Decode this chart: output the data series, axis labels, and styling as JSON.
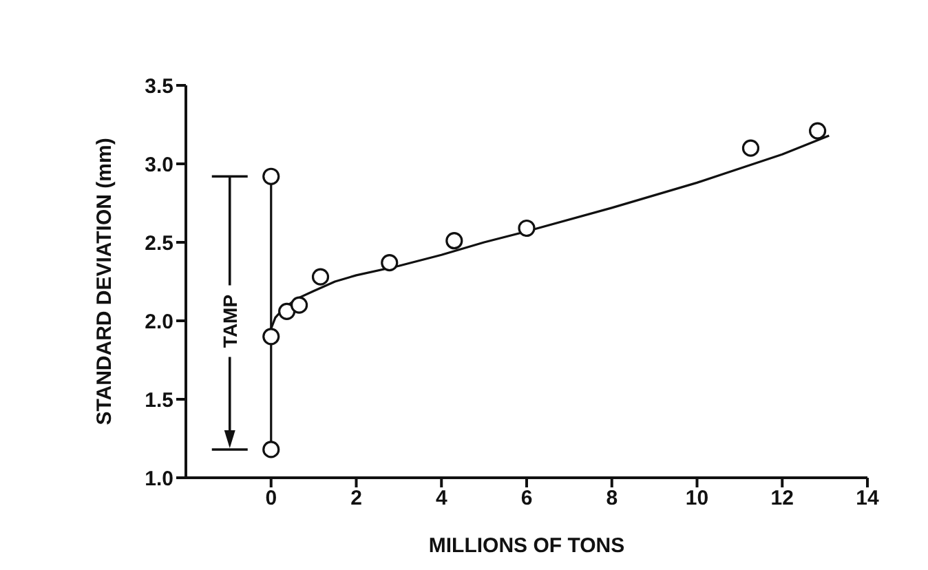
{
  "chart_data": {
    "type": "line",
    "xlabel": "MILLIONS OF TONS",
    "ylabel": "STANDARD DEVIATION (mm)",
    "xlim": [
      -2,
      14
    ],
    "xticks": [
      0,
      2,
      4,
      6,
      8,
      10,
      12,
      14
    ],
    "ylim": [
      1.0,
      3.5
    ],
    "yticks": [
      {
        "value": 1.0,
        "label": "1.0"
      },
      {
        "value": 1.5,
        "label": "1.5"
      },
      {
        "value": 2.0,
        "label": "2.0"
      },
      {
        "value": 2.5,
        "label": "2.5"
      },
      {
        "value": 3.0,
        "label": "3.0"
      },
      {
        "value": 3.5,
        "label": "3.5"
      }
    ],
    "line_style": "solid",
    "series": [
      {
        "type": "line",
        "color": "#111111",
        "marker": "circle",
        "x": [
          0,
          0,
          0
        ],
        "values": [
          1.18,
          1.9,
          2.92
        ]
      },
      {
        "type": "scatter",
        "color": "#111111",
        "marker": "circle",
        "x": [
          0.37,
          0.66,
          1.16,
          2.78,
          4.3,
          6.0,
          11.26,
          12.83
        ],
        "values": [
          2.06,
          2.1,
          2.28,
          2.37,
          2.51,
          2.59,
          3.1,
          3.21
        ]
      },
      {
        "color": "#111111",
        "marker": "none",
        "x": [
          0,
          0.1,
          0.3,
          0.6,
          1,
          1.5,
          2,
          3,
          4,
          5,
          6,
          8,
          10,
          12,
          13.1
        ],
        "values": [
          1.95,
          2.02,
          2.08,
          2.14,
          2.19,
          2.25,
          2.29,
          2.35,
          2.42,
          2.5,
          2.57,
          2.72,
          2.88,
          3.06,
          3.18
        ]
      }
    ],
    "annotations": [
      "TAMP"
    ]
  }
}
